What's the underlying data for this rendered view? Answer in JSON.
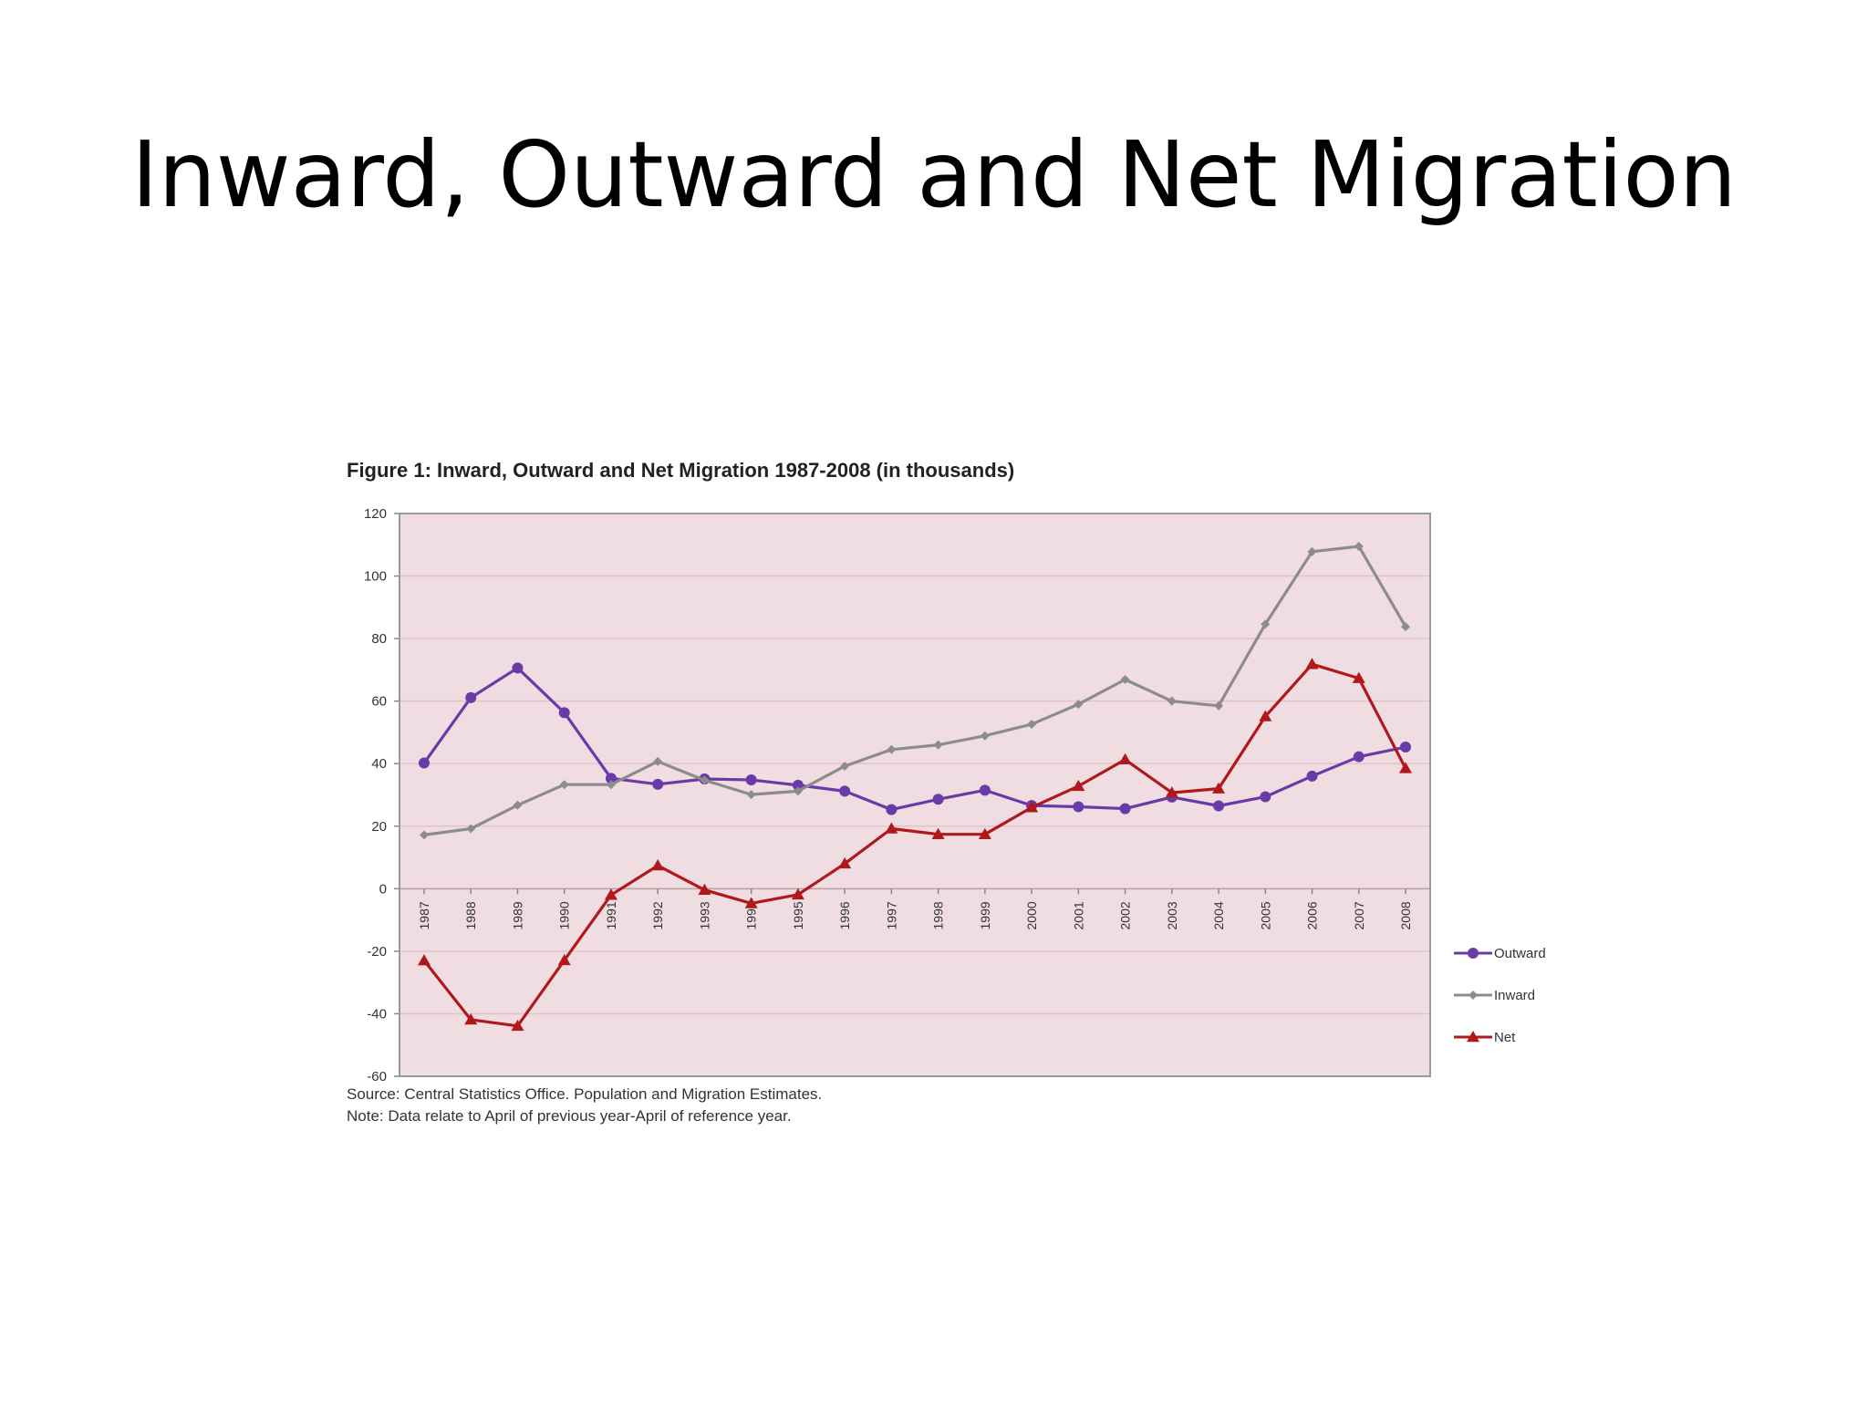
{
  "slide": {
    "title": "Inward, Outward and Net Migration"
  },
  "figure": {
    "title": "Figure 1: Inward, Outward and Net Migration 1987-2008 (in thousands)",
    "source": "Source: Central Statistics Office. Population and Migration Estimates.",
    "note": "Note: Data relate to April of previous year-April of reference year."
  },
  "colors": {
    "plot_background": "#f0dde1",
    "outward": "#6a3aa8",
    "inward": "#8c8c8c",
    "net": "#b0181c",
    "gridline": "#e3c3c9",
    "axis_text": "#333333"
  },
  "chart_data": {
    "type": "line",
    "title": "Figure 1: Inward, Outward and Net Migration 1987-2008 (in thousands)",
    "xlabel": "",
    "ylabel": "",
    "categories": [
      "1987",
      "1988",
      "1989",
      "1990",
      "1991",
      "1992",
      "1993",
      "1994",
      "1995",
      "1996",
      "1997",
      "1998",
      "1999",
      "2000",
      "2001",
      "2002",
      "2003",
      "2004",
      "2005",
      "2006",
      "2007",
      "2008"
    ],
    "ylim": [
      -60,
      120
    ],
    "yticks": [
      120,
      100,
      80,
      60,
      40,
      20,
      0,
      -20,
      -40,
      -60
    ],
    "grid": true,
    "legend_position": "right",
    "series": [
      {
        "name": "Outward",
        "marker": "circle",
        "color": "#6a3aa8",
        "values": [
          40.2,
          61.1,
          70.6,
          56.3,
          35.3,
          33.4,
          35.1,
          34.8,
          33.1,
          31.2,
          25.3,
          28.6,
          31.5,
          26.6,
          26.2,
          25.6,
          29.3,
          26.5,
          29.4,
          36.0,
          42.2,
          45.3
        ]
      },
      {
        "name": "Inward",
        "marker": "diamond",
        "color": "#8c8c8c",
        "values": [
          17.2,
          19.2,
          26.7,
          33.3,
          33.3,
          40.7,
          34.7,
          30.1,
          31.2,
          39.2,
          44.5,
          46.0,
          48.9,
          52.6,
          59.0,
          66.9,
          60.0,
          58.5,
          84.6,
          107.8,
          109.5,
          83.8
        ]
      },
      {
        "name": "Net",
        "marker": "triangle",
        "color": "#b0181c",
        "values": [
          -23.0,
          -41.9,
          -43.9,
          -22.9,
          -2.0,
          7.4,
          -0.4,
          -4.7,
          -1.9,
          8.0,
          19.2,
          17.4,
          17.4,
          26.0,
          32.8,
          41.3,
          30.7,
          32.0,
          55.1,
          71.8,
          67.3,
          38.5
        ]
      }
    ]
  }
}
